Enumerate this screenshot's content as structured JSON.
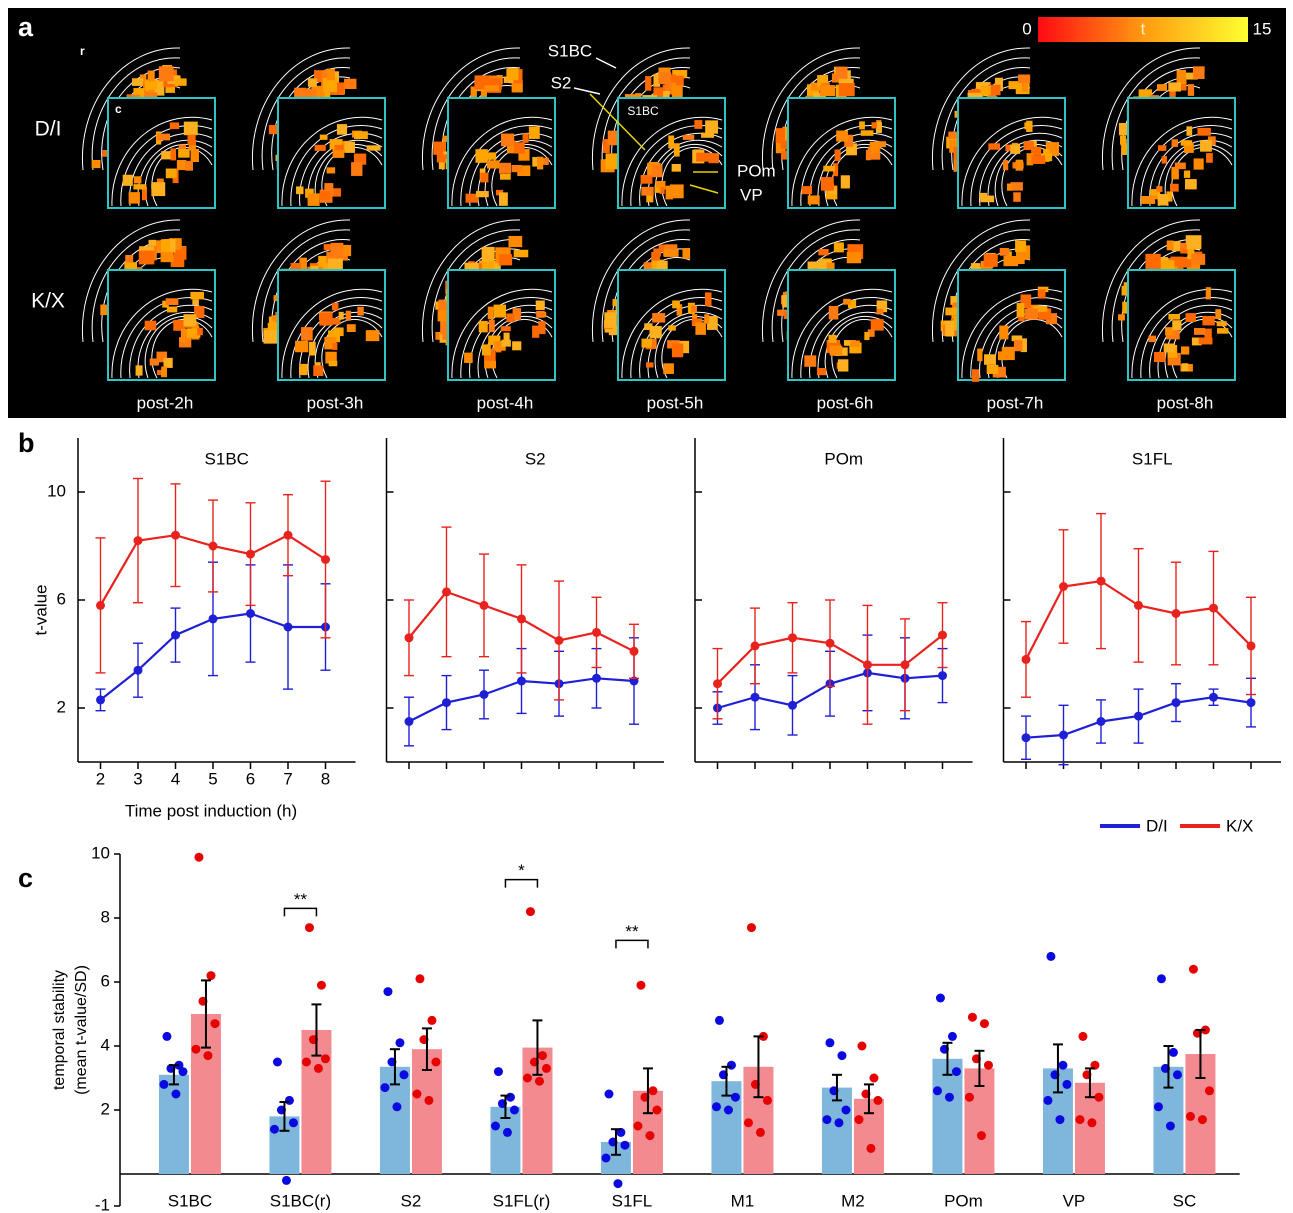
{
  "panel_a": {
    "label": "a",
    "rows": [
      "D/I",
      "K/X"
    ],
    "section_labels": [
      "r",
      "c"
    ],
    "regions": [
      "S1BC",
      "S2",
      "S1BC",
      "POm",
      "VP"
    ],
    "colorbar": {
      "label": "t",
      "lim": [
        0,
        15
      ]
    },
    "times": [
      "post-2h",
      "post-3h",
      "post-4h",
      "post-5h",
      "post-6h",
      "post-7h",
      "post-8h"
    ]
  },
  "chart_data": [
    {
      "type": "line",
      "panel": "b",
      "title": "S1BC",
      "xlabel": "Time post induction (h)",
      "ylabel": "t-value",
      "x": [
        2,
        3,
        4,
        5,
        6,
        7,
        8
      ],
      "xlim": [
        1.4,
        8.8
      ],
      "ylim": [
        0,
        12
      ],
      "xticks": [
        2,
        3,
        4,
        5,
        6,
        7,
        8
      ],
      "yticks": [
        2,
        6,
        10
      ],
      "legend": "lower right",
      "series": [
        {
          "name": "D/I",
          "color": "#1f1fd6",
          "values": [
            2.3,
            3.4,
            4.7,
            5.3,
            5.5,
            5.0,
            5.0
          ],
          "errors": [
            0.4,
            1.0,
            1.0,
            2.1,
            1.8,
            2.3,
            1.6
          ]
        },
        {
          "name": "K/X",
          "color": "#e8231e",
          "values": [
            5.8,
            8.2,
            8.4,
            8.0,
            7.7,
            8.4,
            7.5
          ],
          "errors": [
            2.5,
            2.3,
            1.9,
            1.7,
            1.9,
            1.5,
            2.9
          ]
        }
      ]
    },
    {
      "type": "line",
      "title": "S2",
      "x": [
        2,
        3,
        4,
        5,
        6,
        7,
        8
      ],
      "xlim": [
        1.4,
        8.8
      ],
      "ylim": [
        0,
        12
      ],
      "series": [
        {
          "color": "#1f1fd6",
          "values": [
            1.5,
            2.2,
            2.5,
            3.0,
            2.9,
            3.1,
            3.0
          ],
          "errors": [
            0.9,
            1.0,
            0.9,
            1.2,
            1.2,
            1.1,
            1.6
          ]
        },
        {
          "color": "#e8231e",
          "values": [
            4.6,
            6.3,
            5.8,
            5.3,
            4.5,
            4.8,
            4.1
          ],
          "errors": [
            1.4,
            2.4,
            1.9,
            2.0,
            2.2,
            1.3,
            1.0
          ]
        }
      ]
    },
    {
      "type": "line",
      "title": "POm",
      "x": [
        2,
        3,
        4,
        5,
        6,
        7,
        8
      ],
      "xlim": [
        1.4,
        8.8
      ],
      "ylim": [
        0,
        12
      ],
      "series": [
        {
          "color": "#1f1fd6",
          "values": [
            2.0,
            2.4,
            2.1,
            2.9,
            3.3,
            3.1,
            3.2
          ],
          "errors": [
            0.6,
            1.2,
            1.1,
            1.2,
            1.4,
            1.5,
            1.0
          ]
        },
        {
          "color": "#e8231e",
          "values": [
            2.9,
            4.3,
            4.6,
            4.4,
            3.6,
            3.6,
            4.7
          ],
          "errors": [
            1.3,
            1.4,
            1.3,
            1.6,
            2.2,
            1.7,
            1.2
          ]
        }
      ]
    },
    {
      "type": "line",
      "title": "S1FL",
      "x": [
        2,
        3,
        4,
        5,
        6,
        7,
        8
      ],
      "xlim": [
        1.4,
        8.8
      ],
      "ylim": [
        0,
        12
      ],
      "series": [
        {
          "color": "#1f1fd6",
          "values": [
            0.9,
            1.0,
            1.5,
            1.7,
            2.2,
            2.4,
            2.2
          ],
          "errors": [
            0.8,
            1.1,
            0.8,
            1.0,
            0.7,
            0.3,
            0.9
          ]
        },
        {
          "color": "#e8231e",
          "values": [
            3.8,
            6.5,
            6.7,
            5.8,
            5.5,
            5.7,
            4.3
          ],
          "errors": [
            1.4,
            2.1,
            2.5,
            2.1,
            1.9,
            2.1,
            1.8
          ]
        }
      ]
    },
    {
      "type": "bar",
      "panel": "c",
      "ylabel": [
        "temporal stability",
        "(mean t-value/SD)"
      ],
      "categories": [
        "S1BC",
        "S1BC(r)",
        "S2",
        "S1FL(r)",
        "S1FL",
        "M1",
        "M2",
        "POm",
        "VP",
        "SC"
      ],
      "ylim": [
        -1,
        10
      ],
      "yticks": [
        -1,
        2,
        4,
        6,
        8,
        10
      ],
      "series": [
        {
          "color": "#7fb6dc",
          "point_color": "#0a0ae0",
          "values": [
            3.1,
            1.8,
            3.35,
            2.1,
            1.0,
            2.9,
            2.7,
            3.6,
            3.3,
            3.35
          ],
          "errors": [
            0.3,
            0.45,
            0.55,
            0.35,
            0.4,
            0.45,
            0.4,
            0.5,
            0.75,
            0.65
          ],
          "points": [
            [
              4.3,
              3.4,
              3.3,
              3.2,
              2.8,
              2.5
            ],
            [
              3.5,
              2.3,
              2.0,
              1.6,
              1.4,
              -0.2
            ],
            [
              5.7,
              4.1,
              3.5,
              3.1,
              2.7,
              2.1
            ],
            [
              3.2,
              2.4,
              2.2,
              2.0,
              1.5,
              1.3
            ],
            [
              2.5,
              1.3,
              1.0,
              0.9,
              0.5,
              -0.3
            ],
            [
              4.8,
              3.4,
              3.1,
              2.4,
              2.1,
              2.0
            ],
            [
              4.1,
              3.7,
              2.6,
              2.0,
              1.7,
              1.6
            ],
            [
              5.5,
              4.3,
              3.9,
              3.2,
              2.6,
              2.4
            ],
            [
              6.8,
              3.4,
              3.1,
              2.8,
              2.3,
              1.7
            ],
            [
              6.1,
              3.8,
              3.3,
              3.1,
              2.1,
              1.5
            ]
          ]
        },
        {
          "color": "#f28a90",
          "point_color": "#e60000",
          "values": [
            5.0,
            4.5,
            3.9,
            3.95,
            2.6,
            3.35,
            2.35,
            3.3,
            2.85,
            3.75
          ],
          "errors": [
            1.05,
            0.8,
            0.65,
            0.85,
            0.7,
            0.95,
            0.45,
            0.55,
            0.45,
            0.75
          ],
          "points": [
            [
              9.9,
              6.2,
              5.4,
              4.7,
              3.9,
              3.7
            ],
            [
              7.7,
              5.9,
              4.2,
              3.6,
              3.5,
              3.3
            ],
            [
              6.1,
              4.8,
              4.2,
              3.5,
              2.5,
              2.3
            ],
            [
              8.2,
              3.7,
              3.5,
              3.3,
              3.0,
              2.9
            ],
            [
              5.9,
              2.6,
              2.4,
              2.0,
              1.5,
              1.2
            ],
            [
              7.7,
              4.3,
              2.8,
              2.3,
              1.6,
              1.3
            ],
            [
              4.0,
              3.0,
              2.5,
              2.3,
              1.7,
              0.8
            ],
            [
              4.9,
              4.7,
              3.6,
              3.4,
              2.4,
              1.2
            ],
            [
              4.3,
              3.4,
              3.1,
              2.4,
              1.7,
              1.6
            ],
            [
              6.4,
              4.5,
              4.4,
              2.6,
              1.8,
              1.7
            ]
          ]
        }
      ],
      "annotations": [
        {
          "text": "**",
          "category": 1,
          "y": 8.3
        },
        {
          "text": "*",
          "category": 3,
          "y": 9.2
        },
        {
          "text": "**",
          "category": 4,
          "y": 7.3
        }
      ]
    }
  ]
}
